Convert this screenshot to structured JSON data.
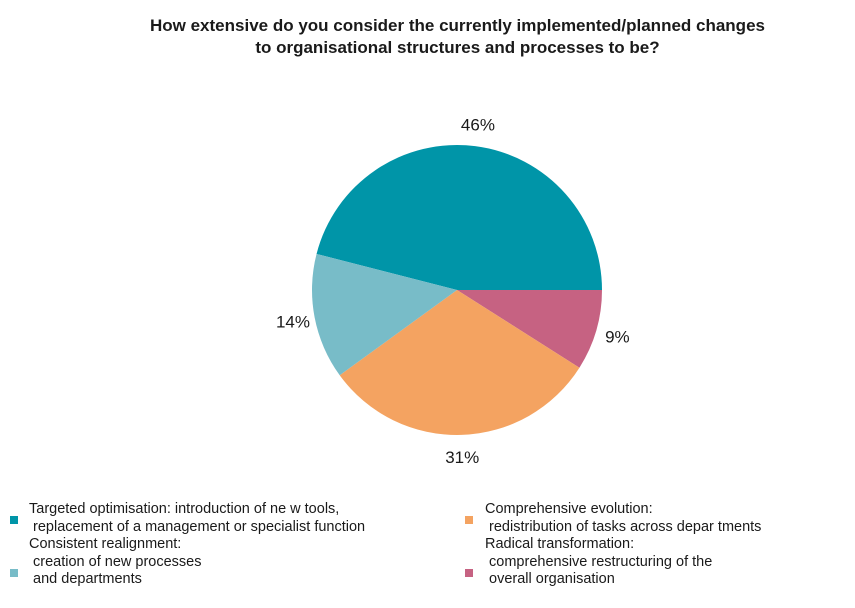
{
  "chart_data": {
    "type": "pie",
    "title": [
      "How extensive do you consider the currently implemented/planned changes",
      "to organisational structures and processes to be?"
    ],
    "slices": [
      {
        "name": "Targeted optimisation",
        "value": 46,
        "label": "46%",
        "color": "#0095A8"
      },
      {
        "name": "Radical transformation",
        "value": 9,
        "label": "9%",
        "color": "#C66282"
      },
      {
        "name": "Comprehensive evolution",
        "value": 31,
        "label": "31%",
        "color": "#F4A361"
      },
      {
        "name": "Consistent realignment",
        "value": 14,
        "label": "14%",
        "color": "#78BCC8"
      }
    ],
    "legend": [
      {
        "color": "#0095A8",
        "lines": [
          "Targeted optimisation: introduction of ne w tools,",
          " replacement of a management or specialist function"
        ]
      },
      {
        "color": "#F4A361",
        "lines": [
          "Comprehensive evolution:",
          " redistribution of tasks across depar tments"
        ]
      },
      {
        "color": "#78BCC8",
        "lines": [
          "Consistent realignment:",
          " creation of new processes",
          " and departments"
        ]
      },
      {
        "color": "#C66282",
        "lines": [
          "Radical transformation:",
          " comprehensive restructuring of the",
          " overall organisation"
        ]
      }
    ]
  }
}
